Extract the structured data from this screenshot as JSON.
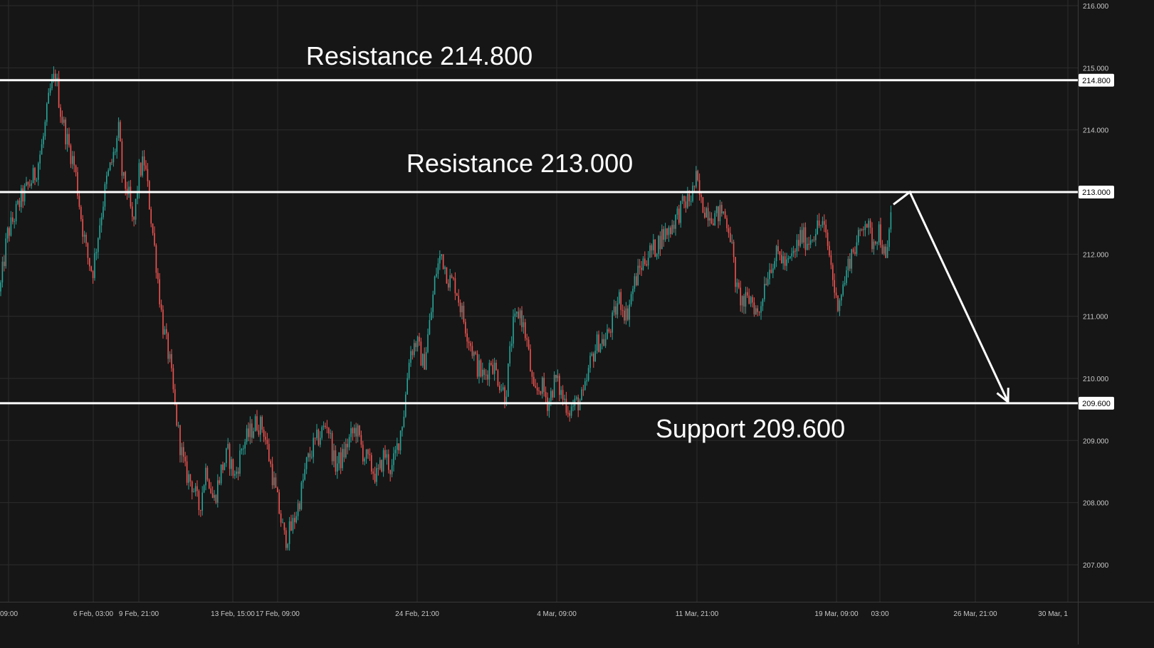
{
  "chart_data": {
    "type": "candlestick",
    "y_axis": {
      "range": [
        206.3,
        216.0
      ],
      "ticks": [
        "207.000",
        "208.000",
        "209.000",
        "210.000",
        "211.000",
        "212.000",
        "213.000",
        "214.000",
        "215.000",
        "216.000"
      ],
      "side": "right"
    },
    "x_axis": {
      "ticks": [
        "09:00",
        "6 Feb, 03:00",
        "9 Feb, 21:00",
        "13 Feb, 15:00",
        "17 Feb, 09:00",
        "24 Feb, 21:00",
        "4 Mar, 09:00",
        "11 Mar, 21:00",
        "19 Mar, 09:00",
        "03:00",
        "26 Mar, 21:00",
        "30 Mar, 1"
      ]
    },
    "grid": true,
    "levels": [
      {
        "name": "resistance-214800",
        "value": 214.8,
        "label": "Resistance 214.800",
        "price_label": "214.800"
      },
      {
        "name": "resistance-213000",
        "value": 213.0,
        "label": "Resistance 213.000",
        "price_label": "213.000"
      },
      {
        "name": "support-209600",
        "value": 209.6,
        "label": "Support 209.600",
        "price_label": "209.600"
      }
    ],
    "price_path": [
      [
        0,
        211.4
      ],
      [
        10,
        212.3
      ],
      [
        20,
        212.6
      ],
      [
        30,
        212.9
      ],
      [
        40,
        213.1
      ],
      [
        50,
        213.3
      ],
      [
        60,
        213.8
      ],
      [
        70,
        214.6
      ],
      [
        78,
        214.9
      ],
      [
        85,
        214.3
      ],
      [
        95,
        213.8
      ],
      [
        105,
        213.4
      ],
      [
        115,
        212.5
      ],
      [
        122,
        212.0
      ],
      [
        130,
        211.7
      ],
      [
        140,
        212.5
      ],
      [
        150,
        213.2
      ],
      [
        160,
        213.6
      ],
      [
        167,
        214.0
      ],
      [
        172,
        213.2
      ],
      [
        180,
        213.0
      ],
      [
        187,
        212.4
      ],
      [
        195,
        213.3
      ],
      [
        203,
        213.5
      ],
      [
        212,
        212.6
      ],
      [
        220,
        211.8
      ],
      [
        228,
        210.9
      ],
      [
        238,
        210.3
      ],
      [
        245,
        209.6
      ],
      [
        252,
        209.0
      ],
      [
        260,
        208.5
      ],
      [
        270,
        208.3
      ],
      [
        280,
        207.9
      ],
      [
        290,
        208.6
      ],
      [
        300,
        208.0
      ],
      [
        310,
        208.5
      ],
      [
        320,
        208.8
      ],
      [
        330,
        208.4
      ],
      [
        340,
        208.9
      ],
      [
        350,
        209.1
      ],
      [
        360,
        209.3
      ],
      [
        370,
        209.2
      ],
      [
        380,
        208.6
      ],
      [
        390,
        208.0
      ],
      [
        400,
        207.4
      ],
      [
        410,
        207.6
      ],
      [
        420,
        208.0
      ],
      [
        430,
        208.6
      ],
      [
        440,
        208.9
      ],
      [
        450,
        209.1
      ],
      [
        460,
        209.3
      ],
      [
        470,
        208.6
      ],
      [
        480,
        208.7
      ],
      [
        490,
        209.0
      ],
      [
        500,
        209.2
      ],
      [
        510,
        208.8
      ],
      [
        520,
        208.6
      ],
      [
        530,
        208.4
      ],
      [
        540,
        208.8
      ],
      [
        550,
        208.5
      ],
      [
        560,
        209.0
      ],
      [
        568,
        209.5
      ],
      [
        575,
        210.4
      ],
      [
        585,
        210.6
      ],
      [
        595,
        210.2
      ],
      [
        605,
        211.0
      ],
      [
        612,
        211.7
      ],
      [
        620,
        212.0
      ],
      [
        630,
        211.6
      ],
      [
        640,
        211.5
      ],
      [
        650,
        211.0
      ],
      [
        660,
        210.6
      ],
      [
        670,
        210.2
      ],
      [
        680,
        210.0
      ],
      [
        690,
        210.3
      ],
      [
        700,
        210.0
      ],
      [
        710,
        209.7
      ],
      [
        720,
        210.8
      ],
      [
        730,
        211.1
      ],
      [
        740,
        210.6
      ],
      [
        750,
        209.7
      ],
      [
        760,
        209.9
      ],
      [
        770,
        209.6
      ],
      [
        780,
        210.0
      ],
      [
        790,
        209.7
      ],
      [
        800,
        209.5
      ],
      [
        810,
        209.6
      ],
      [
        820,
        209.7
      ],
      [
        830,
        210.3
      ],
      [
        840,
        210.6
      ],
      [
        850,
        210.6
      ],
      [
        860,
        210.9
      ],
      [
        870,
        211.3
      ],
      [
        880,
        211.0
      ],
      [
        890,
        211.5
      ],
      [
        900,
        211.8
      ],
      [
        910,
        212.0
      ],
      [
        920,
        212.1
      ],
      [
        930,
        212.3
      ],
      [
        940,
        212.4
      ],
      [
        950,
        212.6
      ],
      [
        960,
        212.8
      ],
      [
        970,
        212.9
      ],
      [
        978,
        213.2
      ],
      [
        985,
        212.8
      ],
      [
        995,
        212.7
      ],
      [
        1005,
        212.6
      ],
      [
        1015,
        212.7
      ],
      [
        1025,
        212.4
      ],
      [
        1035,
        211.4
      ],
      [
        1045,
        211.2
      ],
      [
        1055,
        211.3
      ],
      [
        1065,
        211.0
      ],
      [
        1075,
        211.6
      ],
      [
        1085,
        211.9
      ],
      [
        1095,
        212.0
      ],
      [
        1105,
        211.8
      ],
      [
        1115,
        212.0
      ],
      [
        1125,
        212.3
      ],
      [
        1135,
        212.2
      ],
      [
        1145,
        212.4
      ],
      [
        1155,
        212.5
      ],
      [
        1165,
        212.0
      ],
      [
        1175,
        211.2
      ],
      [
        1185,
        211.5
      ],
      [
        1195,
        212.0
      ],
      [
        1205,
        212.2
      ],
      [
        1215,
        212.6
      ],
      [
        1225,
        212.2
      ],
      [
        1235,
        212.4
      ],
      [
        1245,
        211.8
      ],
      [
        1252,
        212.8
      ]
    ],
    "projection_path": [
      [
        1255,
        212.8
      ],
      [
        1278,
        213.0
      ],
      [
        1416,
        209.62
      ]
    ]
  }
}
